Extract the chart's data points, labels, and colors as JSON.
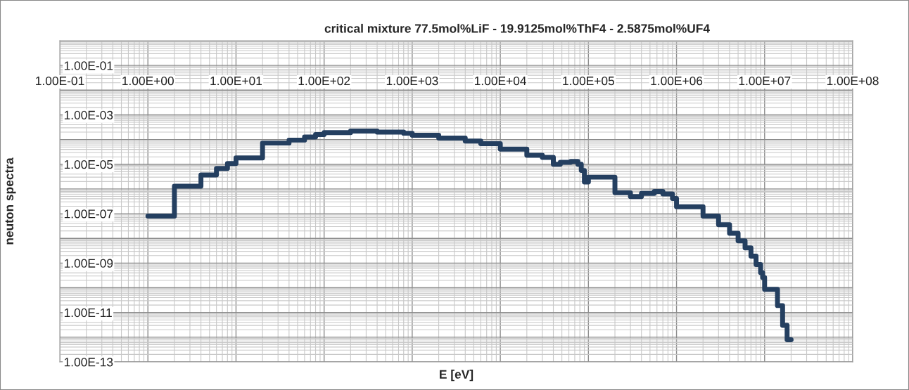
{
  "chart_data": {
    "type": "step",
    "title": "critical mixture 77.5mol%LiF - 19.9125mol%ThF4 - 2.5875mol%UF4",
    "xlabel": "E [eV]",
    "ylabel": "neuton spectra",
    "log": "xy",
    "grid": true,
    "marker": "none",
    "line_style": "solid",
    "xlim": [
      0.1,
      100000000
    ],
    "ylim": [
      1e-13,
      1
    ],
    "xticks": [
      {
        "value": 0.1,
        "label": "1.00E-01"
      },
      {
        "value": 1,
        "label": "1.00E+00"
      },
      {
        "value": 10,
        "label": "1.00E+01"
      },
      {
        "value": 100,
        "label": "1.00E+02"
      },
      {
        "value": 1000,
        "label": "1.00E+03"
      },
      {
        "value": 10000,
        "label": "1.00E+04"
      },
      {
        "value": 100000,
        "label": "1.00E+05"
      },
      {
        "value": 1000000,
        "label": "1.00E+06"
      },
      {
        "value": 10000000,
        "label": "1.00E+07"
      },
      {
        "value": 100000000,
        "label": "1.00E+08"
      }
    ],
    "yticks": [
      {
        "value": 1e-13,
        "label": "1.00E-13"
      },
      {
        "value": 1e-11,
        "label": "1.00E-11"
      },
      {
        "value": 1e-09,
        "label": "1.00E-09"
      },
      {
        "value": 1e-07,
        "label": "1.00E-07"
      },
      {
        "value": 1e-05,
        "label": "1.00E-05"
      },
      {
        "value": 0.001,
        "label": "1.00E-03"
      },
      {
        "value": 0.1,
        "label": "1.00E-01"
      }
    ],
    "series": [
      {
        "color": "#243f60",
        "x": [
          1,
          2,
          4,
          6,
          8,
          10,
          20,
          40,
          60,
          80,
          100,
          200,
          400,
          800,
          1000,
          2000,
          4000,
          6000,
          10000,
          20000,
          30000,
          40000,
          48000,
          63000,
          76000,
          83000,
          90000,
          100000,
          200000,
          300000,
          400000,
          560000,
          700000,
          900000,
          1000000,
          2000000,
          3000000,
          4000000,
          5000000,
          6000000,
          7000000,
          8000000,
          9000000,
          9500000,
          10000000,
          14000000,
          16000000,
          18000000,
          20000000
        ],
        "values": [
          8e-08,
          1.3e-06,
          3.7e-06,
          6.8e-06,
          1.07e-05,
          1.8e-05,
          7.2e-05,
          9.5e-05,
          0.000126,
          0.00016,
          0.00019,
          0.00022,
          0.0002,
          0.00018,
          0.00015,
          0.000115,
          8.7e-05,
          6.8e-05,
          4.1e-05,
          2.3e-05,
          1.9e-05,
          1e-05,
          1.2e-05,
          1.3e-05,
          1e-05,
          5.6e-06,
          1.9e-06,
          3e-06,
          7e-07,
          4.9e-07,
          6.6e-07,
          7.9e-07,
          6.3e-07,
          4.1e-07,
          1.9e-07,
          8e-08,
          3.6e-08,
          1.6e-08,
          7.9e-09,
          4.1e-09,
          1.9e-09,
          8.7e-10,
          4.1e-10,
          2.6e-10,
          8.7e-11,
          1.9e-11,
          3e-12,
          7.9e-13,
          7.9e-13
        ]
      }
    ]
  }
}
